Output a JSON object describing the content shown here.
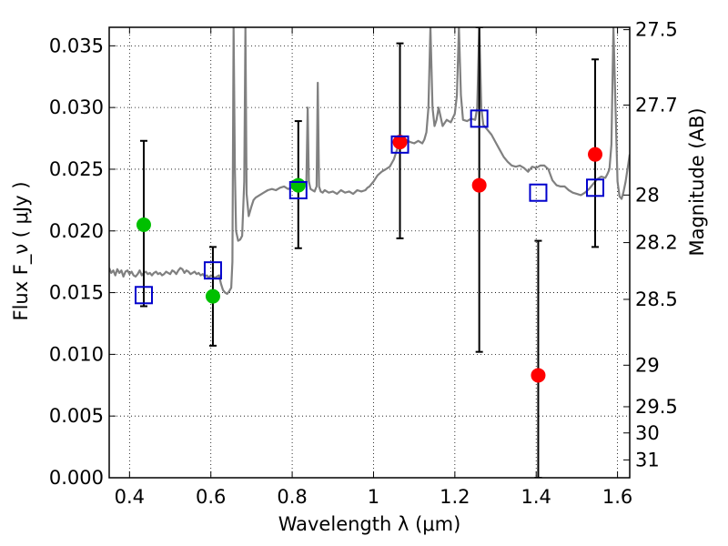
{
  "chart_data": {
    "type": "scatter",
    "title": "",
    "xlabel": "Wavelength  λ (μm)",
    "ylabel": "Flux  F_ν  ( μJy )",
    "ylabel_right": "Magnitude (AB)",
    "xlim": [
      0.35,
      1.63
    ],
    "ylim": [
      0.0,
      0.0365
    ],
    "grid": true,
    "x_ticks": [
      {
        "value": 0.4,
        "label": "0.4"
      },
      {
        "value": 0.6,
        "label": "0.6"
      },
      {
        "value": 0.8,
        "label": "0.8"
      },
      {
        "value": 1.0,
        "label": "1"
      },
      {
        "value": 1.2,
        "label": "1.2"
      },
      {
        "value": 1.4,
        "label": "1.4"
      },
      {
        "value": 1.6,
        "label": "1.6"
      }
    ],
    "y_ticks": [
      {
        "value": 0.0,
        "label": "0.000"
      },
      {
        "value": 0.005,
        "label": "0.005"
      },
      {
        "value": 0.01,
        "label": "0.010"
      },
      {
        "value": 0.015,
        "label": "0.015"
      },
      {
        "value": 0.02,
        "label": "0.020"
      },
      {
        "value": 0.025,
        "label": "0.025"
      },
      {
        "value": 0.03,
        "label": "0.030"
      },
      {
        "value": 0.035,
        "label": "0.035"
      }
    ],
    "y_right_ticks": [
      {
        "value": 27.5,
        "label": "27.5"
      },
      {
        "value": 27.7,
        "label": "27.7"
      },
      {
        "value": 28.0,
        "label": "28"
      },
      {
        "value": 28.2,
        "label": "28.2"
      },
      {
        "value": 28.5,
        "label": "28.5"
      },
      {
        "value": 29.0,
        "label": "29"
      },
      {
        "value": 29.5,
        "label": "29.5"
      },
      {
        "value": 30.0,
        "label": "30"
      },
      {
        "value": 31.0,
        "label": "31"
      }
    ],
    "spectrum": {
      "color": "#808080",
      "points": [
        [
          0.35,
          0.017
        ],
        [
          0.355,
          0.0166
        ],
        [
          0.36,
          0.0168
        ],
        [
          0.365,
          0.0164
        ],
        [
          0.37,
          0.0169
        ],
        [
          0.375,
          0.0166
        ],
        [
          0.38,
          0.0168
        ],
        [
          0.385,
          0.0163
        ],
        [
          0.39,
          0.0167
        ],
        [
          0.395,
          0.0168
        ],
        [
          0.4,
          0.0165
        ],
        [
          0.405,
          0.0167
        ],
        [
          0.41,
          0.0164
        ],
        [
          0.415,
          0.0163
        ],
        [
          0.42,
          0.0165
        ],
        [
          0.425,
          0.0168
        ],
        [
          0.43,
          0.0164
        ],
        [
          0.435,
          0.0166
        ],
        [
          0.44,
          0.0167
        ],
        [
          0.445,
          0.0165
        ],
        [
          0.45,
          0.0166
        ],
        [
          0.455,
          0.0164
        ],
        [
          0.46,
          0.0166
        ],
        [
          0.465,
          0.0167
        ],
        [
          0.47,
          0.0165
        ],
        [
          0.475,
          0.0166
        ],
        [
          0.48,
          0.0164
        ],
        [
          0.485,
          0.0165
        ],
        [
          0.49,
          0.0167
        ],
        [
          0.495,
          0.0166
        ],
        [
          0.5,
          0.0165
        ],
        [
          0.505,
          0.0168
        ],
        [
          0.51,
          0.0167
        ],
        [
          0.515,
          0.0165
        ],
        [
          0.52,
          0.0168
        ],
        [
          0.525,
          0.017
        ],
        [
          0.53,
          0.0169
        ],
        [
          0.535,
          0.0166
        ],
        [
          0.54,
          0.0168
        ],
        [
          0.545,
          0.0167
        ],
        [
          0.55,
          0.0165
        ],
        [
          0.555,
          0.0166
        ],
        [
          0.56,
          0.0167
        ],
        [
          0.565,
          0.0165
        ],
        [
          0.57,
          0.0166
        ],
        [
          0.575,
          0.0164
        ],
        [
          0.58,
          0.0165
        ],
        [
          0.585,
          0.0163
        ],
        [
          0.59,
          0.0164
        ],
        [
          0.595,
          0.0162
        ],
        [
          0.6,
          0.0164
        ],
        [
          0.605,
          0.0163
        ],
        [
          0.61,
          0.0162
        ],
        [
          0.615,
          0.0163
        ],
        [
          0.62,
          0.0164
        ],
        [
          0.625,
          0.0157
        ],
        [
          0.63,
          0.0152
        ],
        [
          0.635,
          0.015
        ],
        [
          0.64,
          0.0149
        ],
        [
          0.645,
          0.0151
        ],
        [
          0.65,
          0.0154
        ],
        [
          0.653,
          0.0175
        ],
        [
          0.656,
          0.0365
        ],
        [
          0.659,
          0.025
        ],
        [
          0.662,
          0.02
        ],
        [
          0.667,
          0.0192
        ],
        [
          0.672,
          0.0193
        ],
        [
          0.677,
          0.0196
        ],
        [
          0.682,
          0.024
        ],
        [
          0.685,
          0.0365
        ],
        [
          0.688,
          0.023
        ],
        [
          0.693,
          0.0212
        ],
        [
          0.7,
          0.022
        ],
        [
          0.705,
          0.0225
        ],
        [
          0.71,
          0.0227
        ],
        [
          0.72,
          0.0229
        ],
        [
          0.73,
          0.0231
        ],
        [
          0.74,
          0.0233
        ],
        [
          0.75,
          0.0234
        ],
        [
          0.76,
          0.0233
        ],
        [
          0.77,
          0.0235
        ],
        [
          0.78,
          0.0236
        ],
        [
          0.79,
          0.0234
        ],
        [
          0.8,
          0.0235
        ],
        [
          0.805,
          0.0237
        ],
        [
          0.81,
          0.0236
        ],
        [
          0.815,
          0.0234
        ],
        [
          0.82,
          0.0236
        ],
        [
          0.825,
          0.0237
        ],
        [
          0.83,
          0.0238
        ],
        [
          0.835,
          0.024
        ],
        [
          0.838,
          0.03
        ],
        [
          0.841,
          0.024
        ],
        [
          0.845,
          0.0234
        ],
        [
          0.85,
          0.0233
        ],
        [
          0.855,
          0.0232
        ],
        [
          0.86,
          0.0236
        ],
        [
          0.863,
          0.032
        ],
        [
          0.866,
          0.0236
        ],
        [
          0.87,
          0.0232
        ],
        [
          0.875,
          0.0231
        ],
        [
          0.88,
          0.0233
        ],
        [
          0.89,
          0.0231
        ],
        [
          0.9,
          0.0232
        ],
        [
          0.91,
          0.023
        ],
        [
          0.92,
          0.0233
        ],
        [
          0.93,
          0.0231
        ],
        [
          0.94,
          0.0232
        ],
        [
          0.95,
          0.023
        ],
        [
          0.96,
          0.0233
        ],
        [
          0.97,
          0.0232
        ],
        [
          0.98,
          0.0233
        ],
        [
          0.985,
          0.0235
        ],
        [
          0.99,
          0.0236
        ],
        [
          0.995,
          0.0238
        ],
        [
          1.0,
          0.024
        ],
        [
          1.01,
          0.0245
        ],
        [
          1.02,
          0.0248
        ],
        [
          1.03,
          0.025
        ],
        [
          1.04,
          0.0252
        ],
        [
          1.05,
          0.0258
        ],
        [
          1.055,
          0.0263
        ],
        [
          1.06,
          0.0268
        ],
        [
          1.065,
          0.0272
        ],
        [
          1.07,
          0.027
        ],
        [
          1.08,
          0.0274
        ],
        [
          1.09,
          0.0272
        ],
        [
          1.1,
          0.0271
        ],
        [
          1.11,
          0.0273
        ],
        [
          1.12,
          0.0271
        ],
        [
          1.125,
          0.0274
        ],
        [
          1.13,
          0.028
        ],
        [
          1.135,
          0.03
        ],
        [
          1.14,
          0.0365
        ],
        [
          1.145,
          0.03
        ],
        [
          1.15,
          0.0285
        ],
        [
          1.155,
          0.029
        ],
        [
          1.16,
          0.03
        ],
        [
          1.17,
          0.0285
        ],
        [
          1.18,
          0.029
        ],
        [
          1.19,
          0.0288
        ],
        [
          1.2,
          0.0295
        ],
        [
          1.205,
          0.031
        ],
        [
          1.21,
          0.0365
        ],
        [
          1.215,
          0.031
        ],
        [
          1.22,
          0.029
        ],
        [
          1.23,
          0.0289
        ],
        [
          1.24,
          0.0291
        ],
        [
          1.25,
          0.029
        ],
        [
          1.255,
          0.03
        ],
        [
          1.26,
          0.0365
        ],
        [
          1.265,
          0.03
        ],
        [
          1.27,
          0.0286
        ],
        [
          1.28,
          0.0282
        ],
        [
          1.29,
          0.0278
        ],
        [
          1.3,
          0.0272
        ],
        [
          1.31,
          0.0266
        ],
        [
          1.32,
          0.026
        ],
        [
          1.33,
          0.0256
        ],
        [
          1.34,
          0.0253
        ],
        [
          1.35,
          0.0252
        ],
        [
          1.36,
          0.0253
        ],
        [
          1.37,
          0.0251
        ],
        [
          1.38,
          0.0248
        ],
        [
          1.39,
          0.0252
        ],
        [
          1.4,
          0.0251
        ],
        [
          1.41,
          0.0253
        ],
        [
          1.42,
          0.0253
        ],
        [
          1.43,
          0.025
        ],
        [
          1.44,
          0.0241
        ],
        [
          1.45,
          0.0237
        ],
        [
          1.46,
          0.0236
        ],
        [
          1.47,
          0.0236
        ],
        [
          1.48,
          0.0233
        ],
        [
          1.49,
          0.0231
        ],
        [
          1.5,
          0.023
        ],
        [
          1.51,
          0.0229
        ],
        [
          1.52,
          0.0231
        ],
        [
          1.53,
          0.0234
        ],
        [
          1.54,
          0.0238
        ],
        [
          1.55,
          0.0242
        ],
        [
          1.56,
          0.0244
        ],
        [
          1.57,
          0.0243
        ],
        [
          1.575,
          0.0246
        ],
        [
          1.58,
          0.025
        ],
        [
          1.585,
          0.027
        ],
        [
          1.59,
          0.0365
        ],
        [
          1.595,
          0.03
        ],
        [
          1.6,
          0.024
        ],
        [
          1.605,
          0.0228
        ],
        [
          1.61,
          0.0226
        ],
        [
          1.615,
          0.0232
        ],
        [
          1.62,
          0.024
        ],
        [
          1.63,
          0.0262
        ]
      ]
    },
    "series": [
      {
        "marker": "circle",
        "color": "#00c000",
        "points": [
          {
            "x": 0.435,
            "y": 0.0205
          },
          {
            "x": 0.605,
            "y": 0.0147
          },
          {
            "x": 0.815,
            "y": 0.0237
          }
        ]
      },
      {
        "marker": "circle",
        "color": "#ff0000",
        "points": [
          {
            "x": 1.065,
            "y": 0.0272
          },
          {
            "x": 1.26,
            "y": 0.0237
          },
          {
            "x": 1.405,
            "y": 0.0083
          },
          {
            "x": 1.545,
            "y": 0.0262
          }
        ]
      },
      {
        "marker": "open-square",
        "color": "#0000cc",
        "points": [
          {
            "x": 0.435,
            "y": 0.0148
          },
          {
            "x": 0.605,
            "y": 0.0168
          },
          {
            "x": 0.815,
            "y": 0.0233
          },
          {
            "x": 1.065,
            "y": 0.027
          },
          {
            "x": 1.26,
            "y": 0.0291
          },
          {
            "x": 1.405,
            "y": 0.0231
          },
          {
            "x": 1.545,
            "y": 0.0235
          }
        ]
      }
    ],
    "error_bars": [
      {
        "x": 0.435,
        "low": 0.0139,
        "high": 0.0273
      },
      {
        "x": 0.605,
        "low": 0.0107,
        "high": 0.0187
      },
      {
        "x": 0.815,
        "low": 0.0186,
        "high": 0.0289
      },
      {
        "x": 1.065,
        "low": 0.0194,
        "high": 0.0352
      },
      {
        "x": 1.26,
        "low": 0.0102,
        "high": 0.0365
      },
      {
        "x": 1.405,
        "low": 0.0,
        "high": 0.0192
      },
      {
        "x": 1.545,
        "low": 0.0187,
        "high": 0.0339
      }
    ]
  }
}
